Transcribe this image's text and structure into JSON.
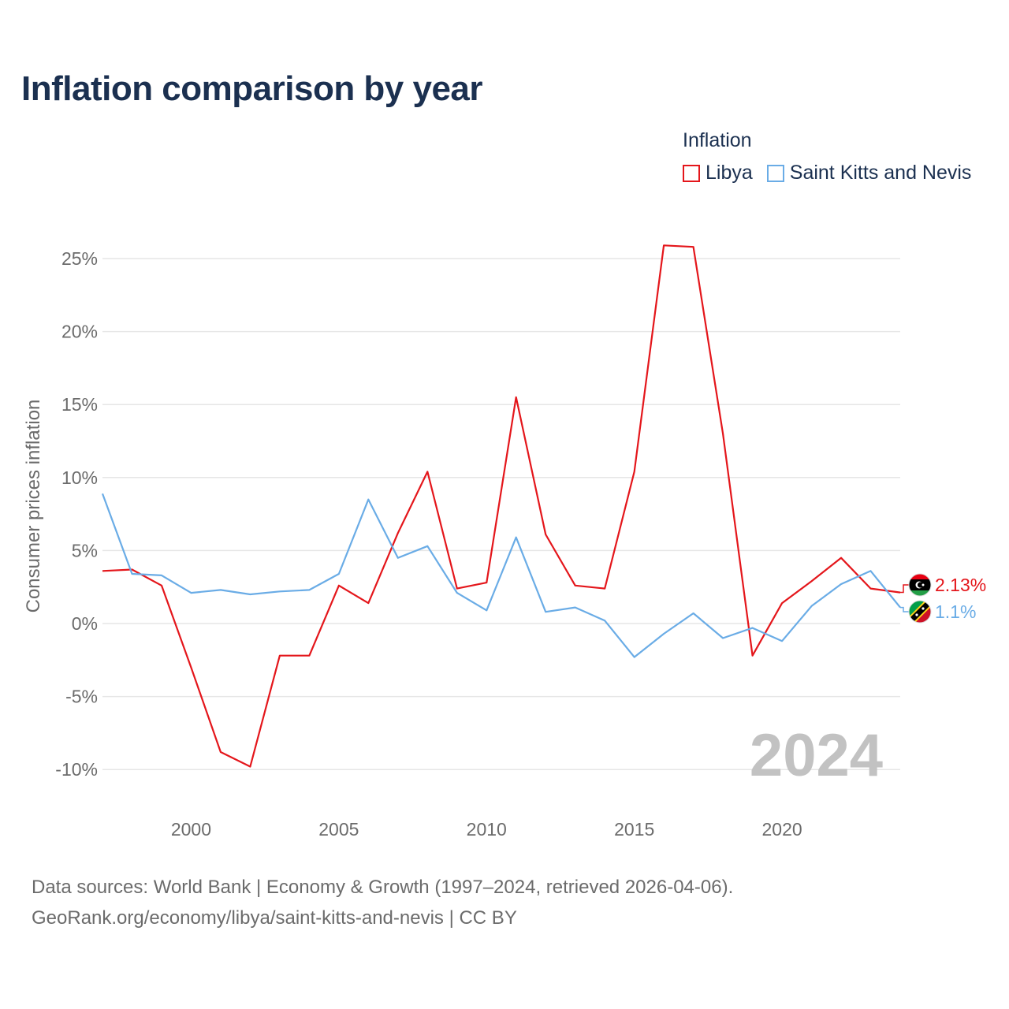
{
  "title": "Inflation comparison by year",
  "legend": {
    "title": "Inflation",
    "items": [
      {
        "label": "Libya",
        "color": "#e4161b"
      },
      {
        "label": "Saint Kitts and Nevis",
        "color": "#6aace6"
      }
    ]
  },
  "footer": {
    "line1": "Data sources: World Bank | Economy & Growth (1997–2024, retrieved 2026-04-06).",
    "line2": "GeoRank.org/economy/libya/saint-kitts-and-nevis | CC BY"
  },
  "chart_data": {
    "type": "line",
    "title": "Inflation comparison by year",
    "xlabel": "",
    "ylabel": "Consumer prices inflation",
    "watermark_year": "2024",
    "xlim": [
      1997,
      2024
    ],
    "ylim": [
      -12,
      26
    ],
    "y_ticks": [
      -10,
      -5,
      0,
      5,
      10,
      15,
      20,
      25
    ],
    "y_tick_labels": [
      "-10%",
      "-5%",
      "0%",
      "5%",
      "10%",
      "15%",
      "20%",
      "25%"
    ],
    "x_ticks": [
      2000,
      2005,
      2010,
      2015,
      2020
    ],
    "x_tick_labels": [
      "2000",
      "2005",
      "2010",
      "2015",
      "2020"
    ],
    "grid": true,
    "legend_position": "top-right",
    "x": [
      1997,
      1998,
      1999,
      2000,
      2001,
      2002,
      2003,
      2004,
      2005,
      2006,
      2007,
      2008,
      2009,
      2010,
      2011,
      2012,
      2013,
      2014,
      2015,
      2016,
      2017,
      2018,
      2019,
      2020,
      2021,
      2022,
      2023,
      2024
    ],
    "series": [
      {
        "name": "Libya",
        "color": "#e4161b",
        "end_label": "2.13%",
        "values": [
          3.6,
          3.7,
          2.6,
          -3.0,
          -8.8,
          -9.8,
          -2.2,
          -2.2,
          2.6,
          1.4,
          6.2,
          10.4,
          2.4,
          2.8,
          15.5,
          6.1,
          2.6,
          2.4,
          10.4,
          25.9,
          25.8,
          13.0,
          -2.2,
          1.4,
          2.9,
          4.5,
          2.4,
          2.13
        ]
      },
      {
        "name": "Saint Kitts and Nevis",
        "color": "#6aace6",
        "end_label": "1.1%",
        "values": [
          8.9,
          3.4,
          3.3,
          2.1,
          2.3,
          2.0,
          2.2,
          2.3,
          3.4,
          8.5,
          4.5,
          5.3,
          2.1,
          0.9,
          5.9,
          0.8,
          1.1,
          0.2,
          -2.3,
          -0.7,
          0.7,
          -1.0,
          -0.3,
          -1.2,
          1.2,
          2.7,
          3.6,
          1.1
        ]
      }
    ]
  }
}
